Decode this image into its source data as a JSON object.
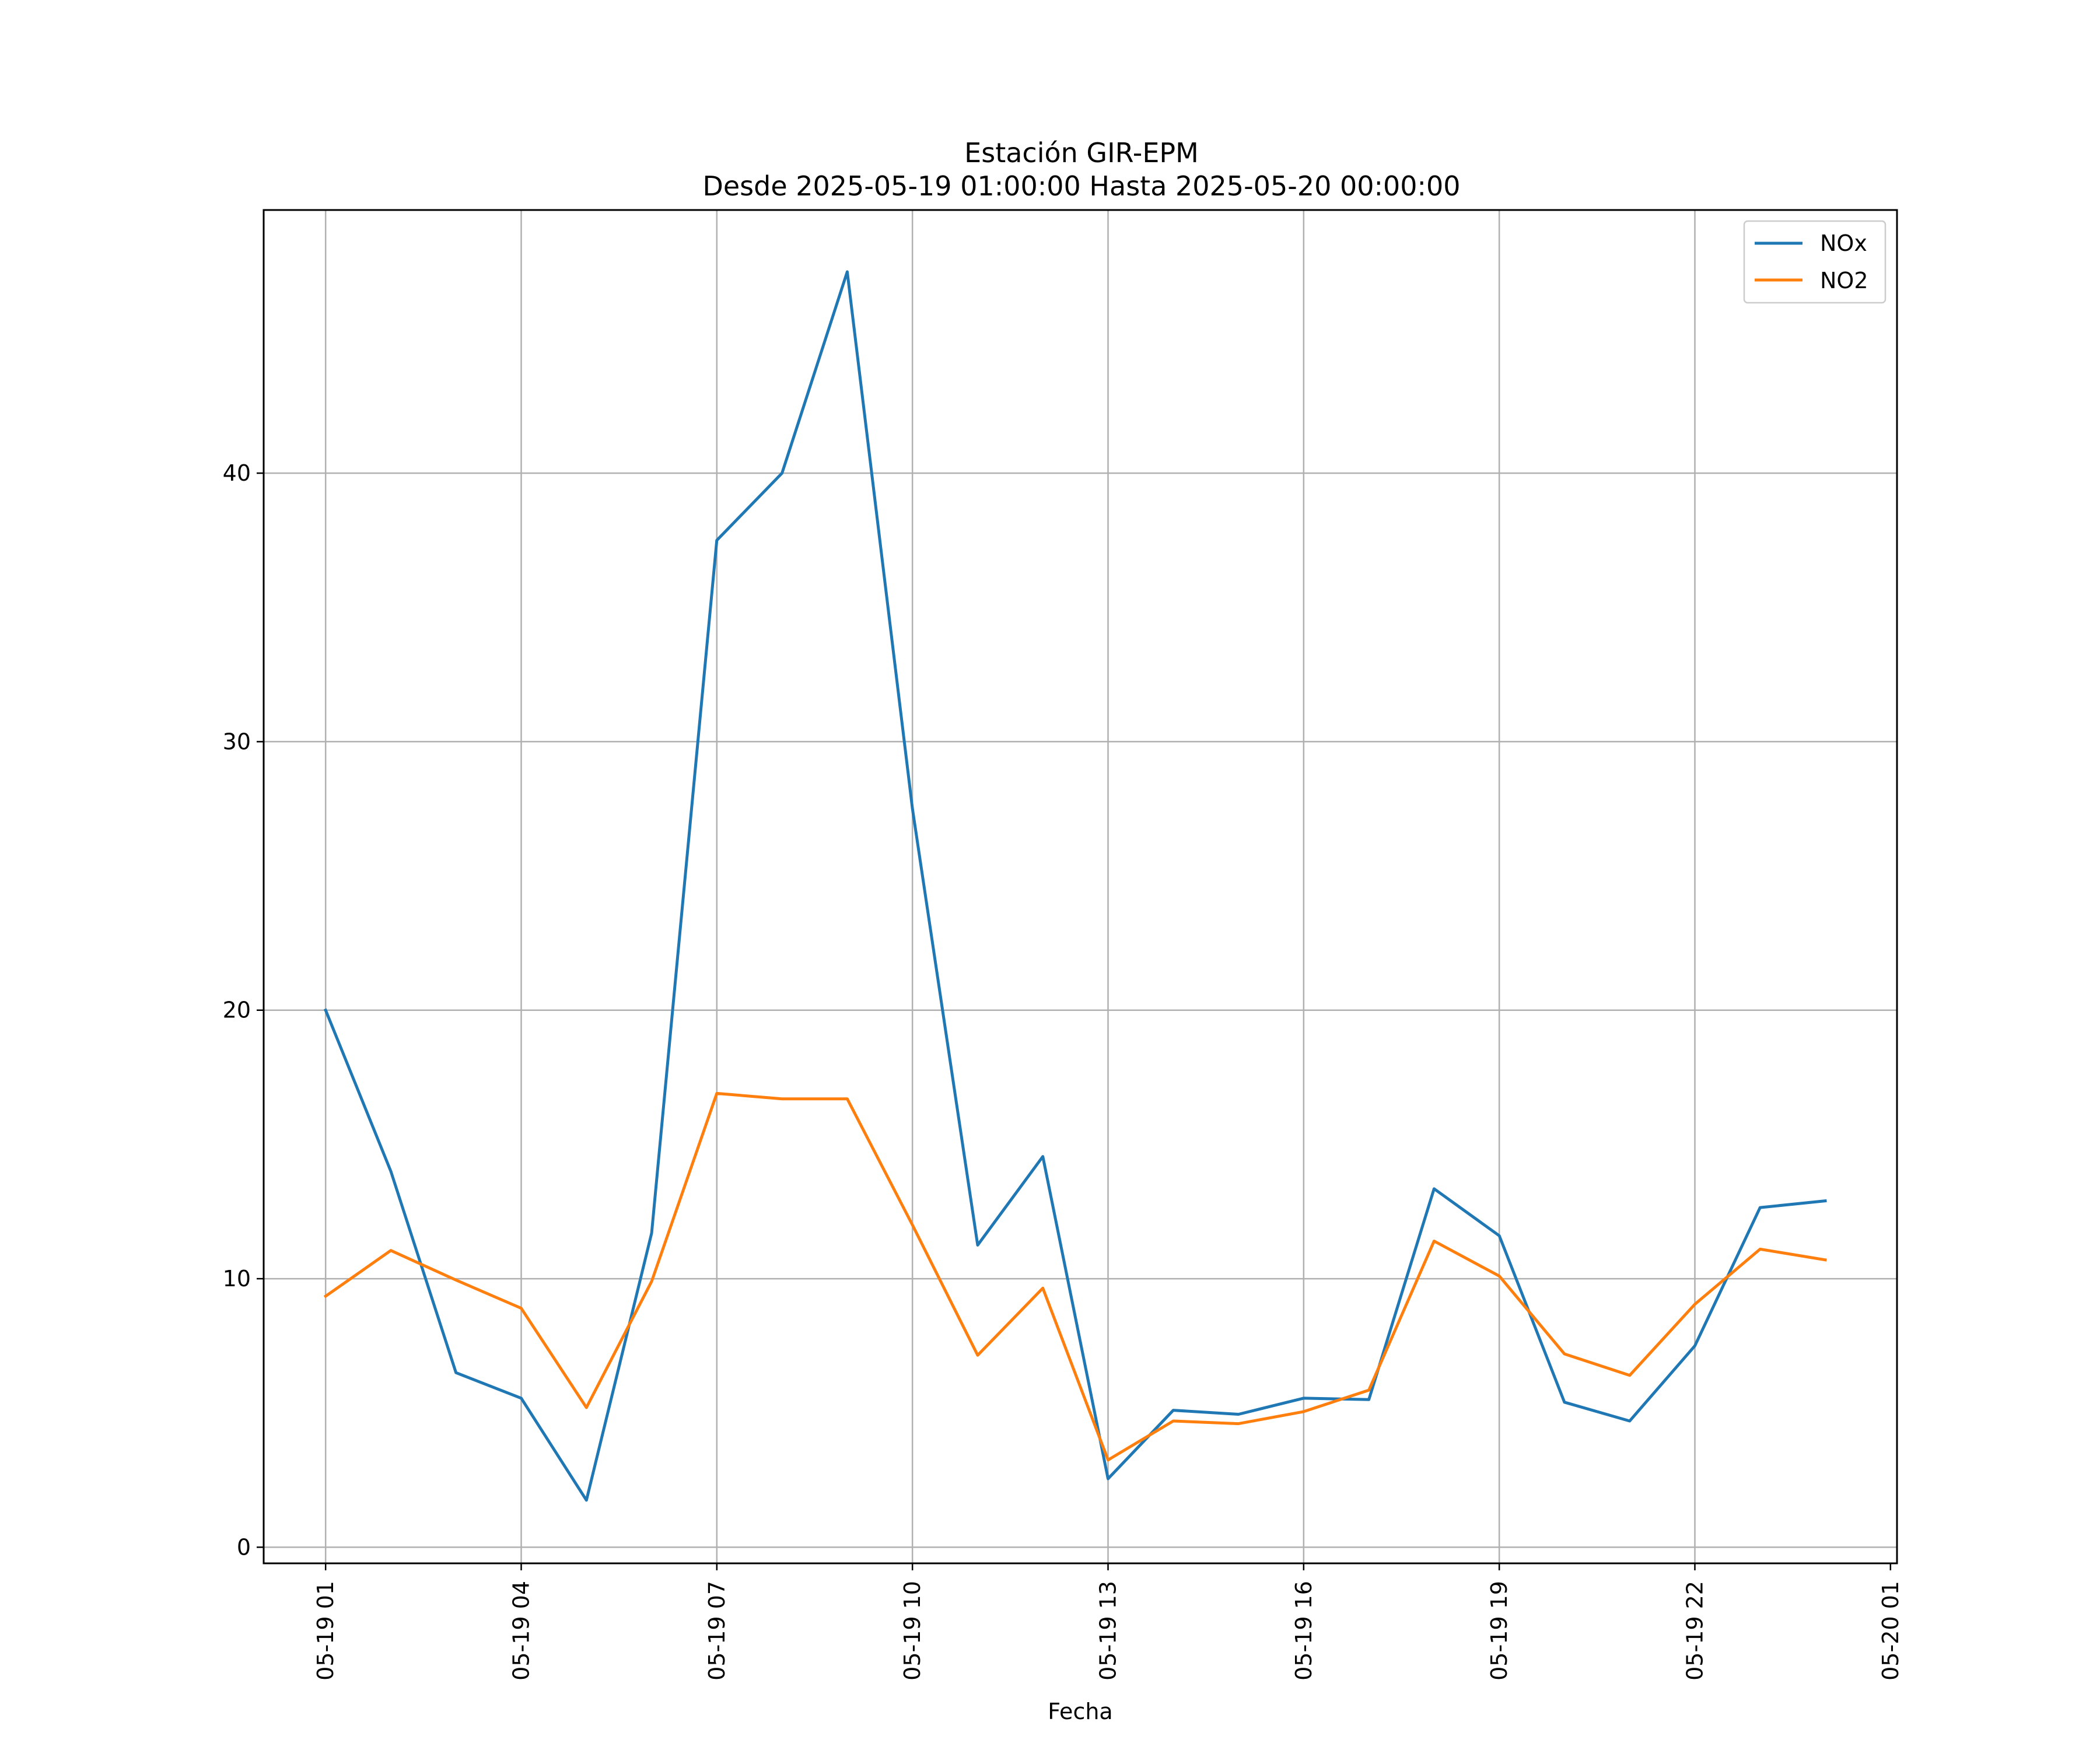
{
  "chart_data": {
    "type": "line",
    "title": "Estación GIR-EPM",
    "subtitle": "Desde 2025-05-19 01:00:00 Hasta 2025-05-20 00:00:00",
    "xlabel": "Fecha",
    "ylabel": "",
    "x": [
      "2025-05-19 01:00",
      "2025-05-19 02:00",
      "2025-05-19 03:00",
      "2025-05-19 04:00",
      "2025-05-19 05:00",
      "2025-05-19 06:00",
      "2025-05-19 07:00",
      "2025-05-19 08:00",
      "2025-05-19 09:00",
      "2025-05-19 10:00",
      "2025-05-19 11:00",
      "2025-05-19 12:00",
      "2025-05-19 13:00",
      "2025-05-19 14:00",
      "2025-05-19 15:00",
      "2025-05-19 16:00",
      "2025-05-19 17:00",
      "2025-05-19 18:00",
      "2025-05-19 19:00",
      "2025-05-19 20:00",
      "2025-05-19 21:00",
      "2025-05-19 22:00",
      "2025-05-19 23:00",
      "2025-05-20 00:00"
    ],
    "x_ticks": [
      "05-19 01",
      "05-19 04",
      "05-19 07",
      "05-19 10",
      "05-19 13",
      "05-19 16",
      "05-19 19",
      "05-19 22",
      "05-20 01"
    ],
    "y_ticks": [
      0,
      10,
      20,
      30,
      40
    ],
    "ylim": [
      -0.6,
      49.8
    ],
    "xlim": [
      "2025-05-19 00:03",
      "2025-05-20 01:06"
    ],
    "grid": true,
    "legend_position": "top-right",
    "series": [
      {
        "name": "NOx",
        "color": "#1f77b4",
        "values": [
          20.0,
          14.0,
          6.5,
          5.55,
          1.75,
          11.7,
          37.5,
          40.0,
          47.5,
          27.5,
          11.25,
          14.55,
          2.55,
          5.1,
          4.95,
          5.55,
          5.5,
          13.35,
          11.6,
          5.4,
          4.7,
          7.5,
          12.65,
          12.9
        ]
      },
      {
        "name": "NO2",
        "color": "#ff7f0e",
        "values": [
          9.35,
          11.05,
          9.95,
          8.9,
          5.2,
          9.9,
          16.9,
          16.7,
          16.7,
          12.0,
          7.15,
          9.65,
          3.25,
          4.7,
          4.6,
          5.05,
          5.85,
          11.4,
          10.1,
          7.2,
          6.4,
          9.05,
          11.1,
          10.7
        ]
      }
    ]
  }
}
